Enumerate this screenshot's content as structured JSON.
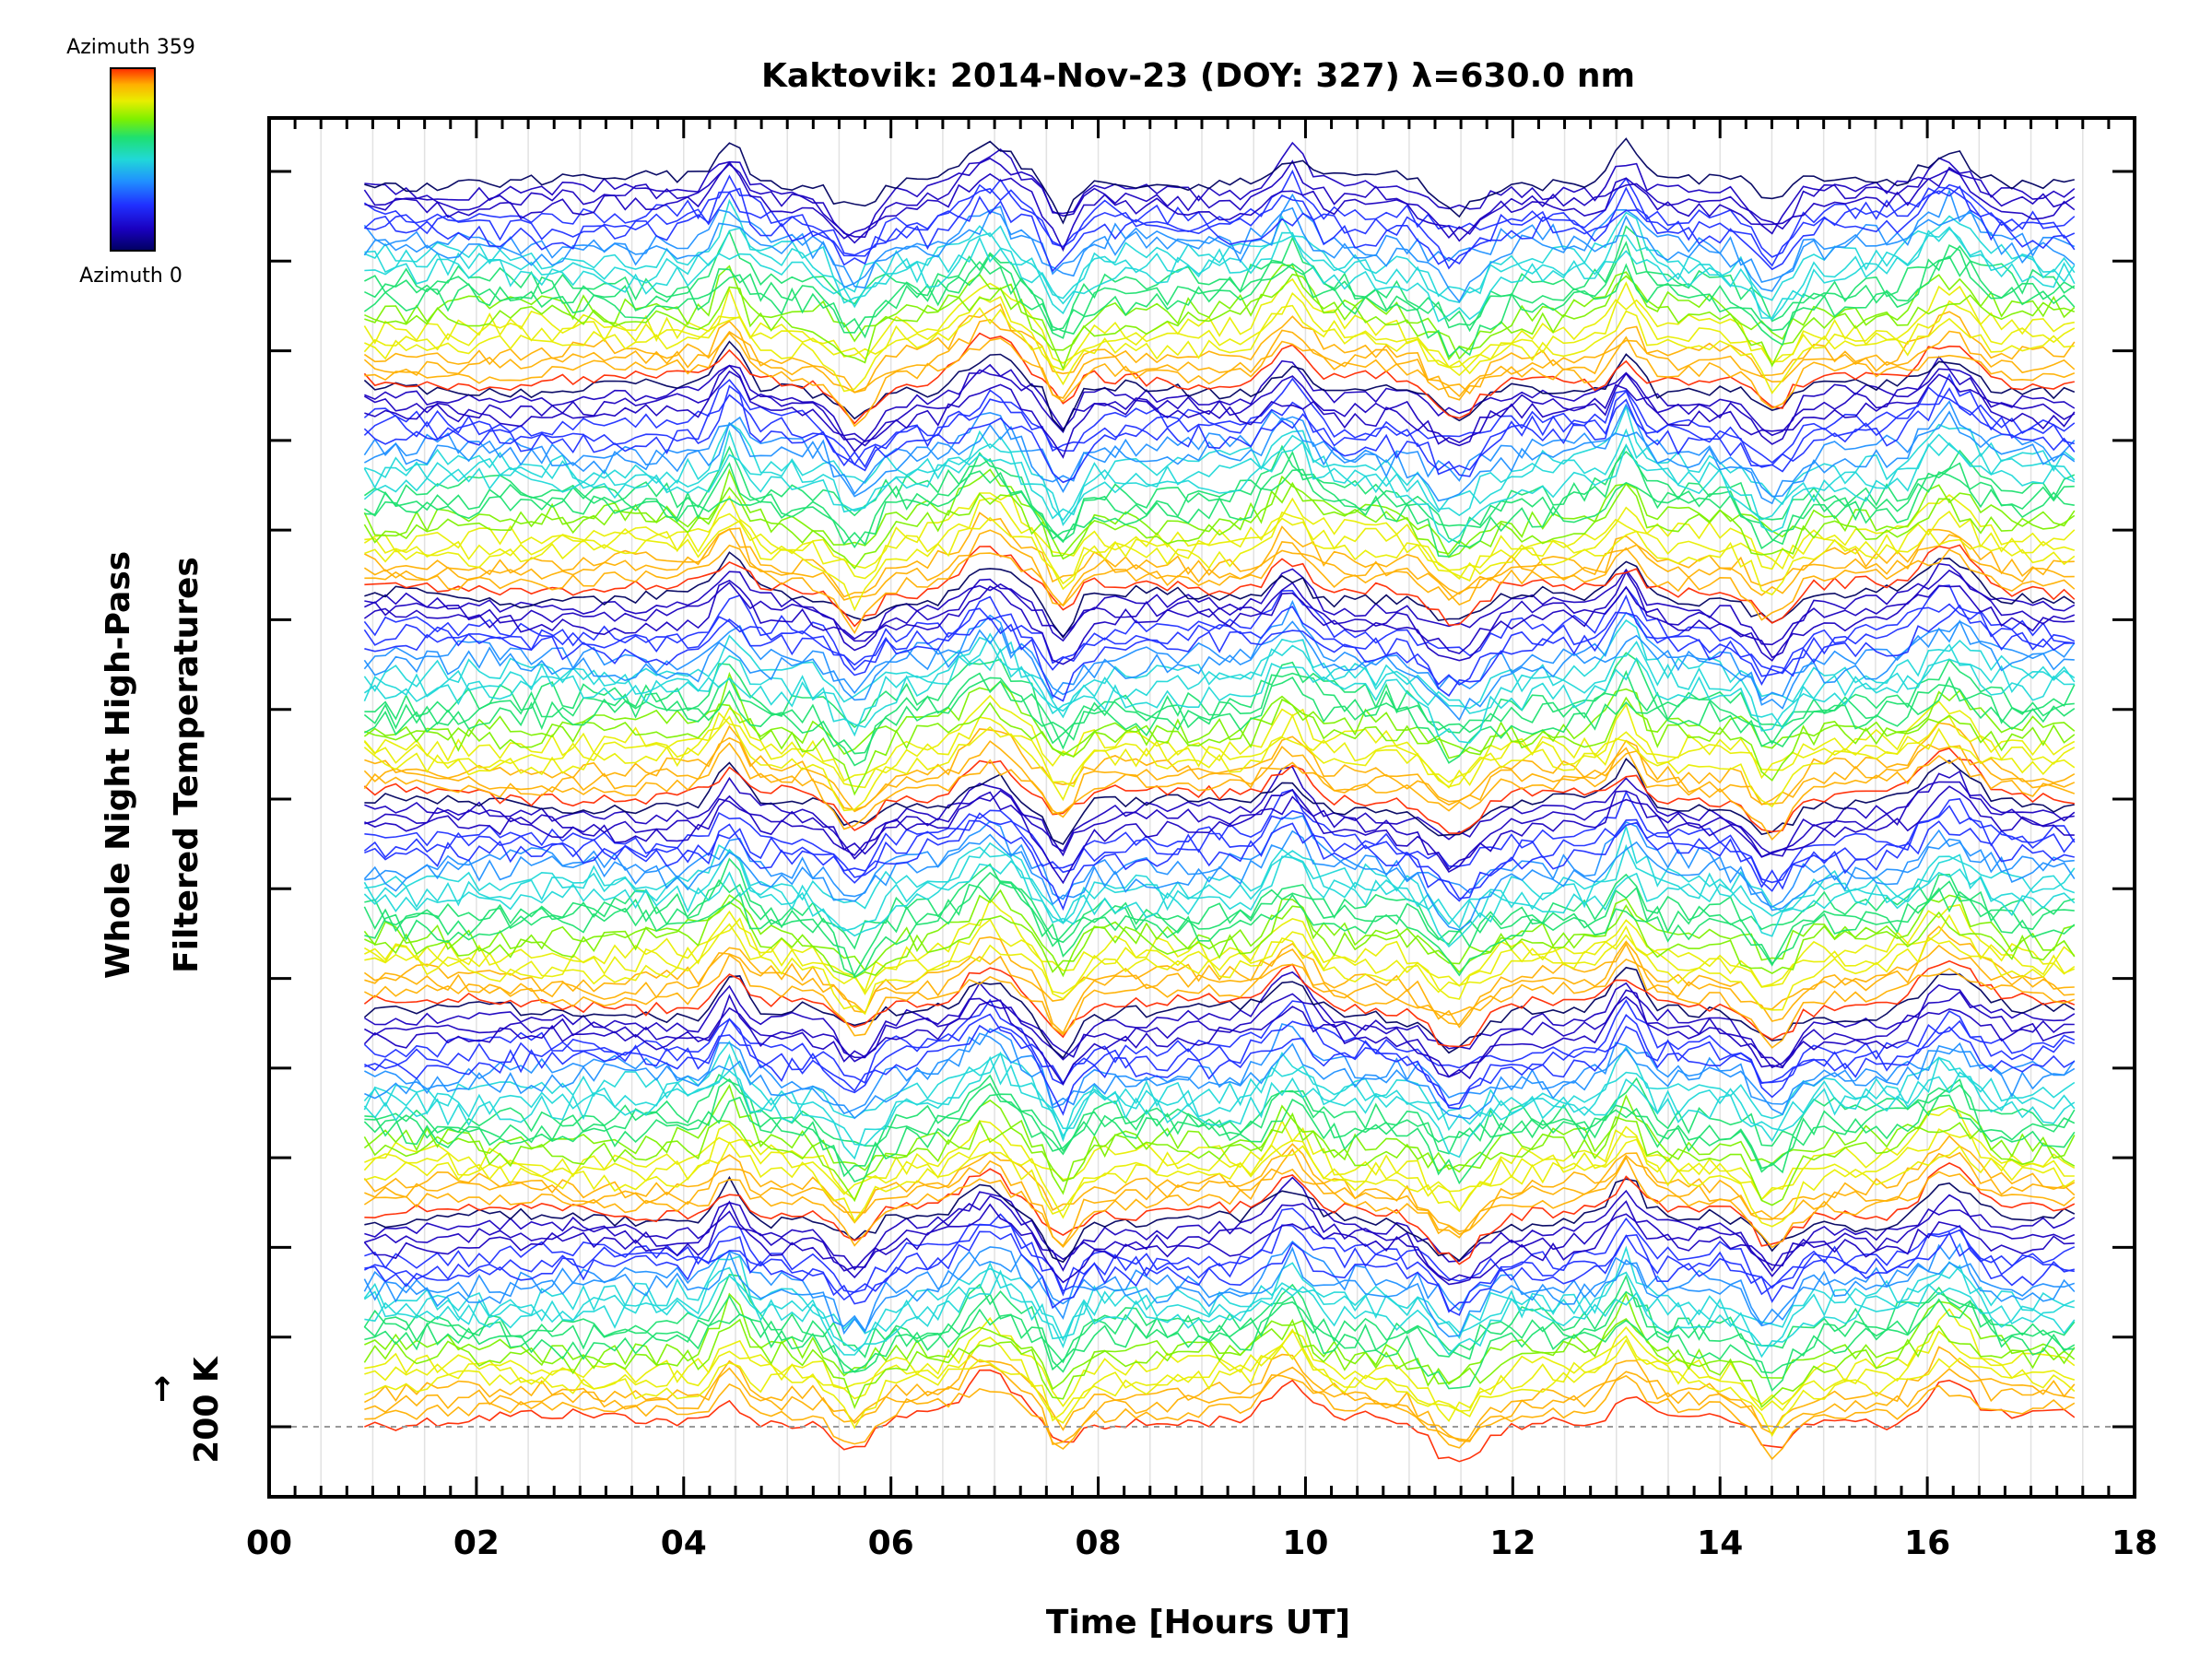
{
  "chart_data": {
    "type": "line",
    "title": "Kaktovik: 2014-Nov-23 (DOY: 327) λ=630.0 nm",
    "xlabel": "Time [Hours UT]",
    "ylabel_line1": "Whole Night High-Pass",
    "ylabel_line2": "Filtered Temperatures",
    "scale_label": "200 K",
    "scale_arrow": "↑",
    "xlim": [
      0,
      18
    ],
    "x_ticks": [
      0,
      2,
      4,
      6,
      8,
      10,
      12,
      14,
      16,
      18
    ],
    "x_tick_labels": [
      "00",
      "02",
      "04",
      "06",
      "08",
      "10",
      "12",
      "14",
      "16",
      "18"
    ],
    "y_ticks": 15,
    "data_start_hour": 0.92,
    "data_end_hour": 17.42,
    "colorbar": {
      "top_label": "Azimuth  359",
      "bottom_label": "Azimuth  0",
      "colors": [
        "#ff2a00",
        "#ffb000",
        "#e8ee00",
        "#7df000",
        "#1ee070",
        "#20d8d8",
        "#2090ff",
        "#2030ff",
        "#1a00c0",
        "#000060"
      ]
    },
    "disturbance_events_hours": [
      4.45,
      5.65,
      6.95,
      7.65,
      9.85,
      11.45,
      13.1,
      14.5,
      16.2
    ],
    "series_groups": 6,
    "traces_per_group": 24,
    "baseline": "grey dashed line at lowest trace"
  }
}
